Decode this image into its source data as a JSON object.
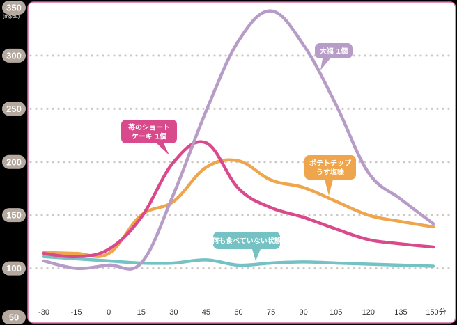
{
  "chart_data": {
    "type": "line",
    "title": "",
    "xlabel": "",
    "ylabel": "",
    "y_unit": "(mg/dL)",
    "x_unit_suffix": "分",
    "x": [
      -30,
      -15,
      0,
      15,
      30,
      45,
      60,
      75,
      90,
      105,
      120,
      135,
      150
    ],
    "x_tick_labels": [
      "-30",
      "-15",
      "0",
      "15",
      "30",
      "45",
      "60",
      "75",
      "90",
      "105",
      "120",
      "135",
      "150分"
    ],
    "y_ticks": [
      50,
      100,
      150,
      200,
      250,
      300,
      350
    ],
    "y_tick_labels": [
      "50",
      "100",
      "150",
      "200",
      "250",
      "300",
      "350"
    ],
    "ylim": [
      50,
      350
    ],
    "xlim": [
      -30,
      150
    ],
    "grid": "horizontal-dotted",
    "legend": "callouts-on-lines",
    "series": [
      {
        "name": "苺のショートケーキ 1個",
        "label_lines": [
          "苺のショートケーキ",
          "ケーキ 1個"
        ],
        "color": "#d94a8c",
        "values": [
          114,
          111,
          118,
          148,
          200,
          218,
          175,
          157,
          148,
          137,
          127,
          123,
          120
        ]
      },
      {
        "name": "ポテトチップ うす塩味",
        "label_lines": [
          "ポテトチップ",
          "うす塩味"
        ],
        "color": "#efa54c",
        "values": [
          115,
          114,
          114,
          150,
          163,
          195,
          201,
          183,
          176,
          163,
          150,
          144,
          139
        ]
      },
      {
        "name": "大福 1個",
        "label_lines": [
          "大福 1個"
        ],
        "color": "#b79cc8",
        "values": [
          107,
          100,
          103,
          105,
          170,
          248,
          314,
          342,
          310,
          254,
          190,
          165,
          142
        ]
      },
      {
        "name": "何も食べていない状態",
        "label_lines": [
          "何も食べていない状態"
        ],
        "color": "#74c2c3",
        "values": [
          111,
          109,
          107,
          105,
          105,
          108,
          103,
          105,
          106,
          105,
          104,
          103,
          102
        ]
      }
    ],
    "callouts": [
      {
        "series": 0,
        "lines": [
          "苺のショート",
          "ケーキ 1個"
        ],
        "color": "#d94a8c",
        "anchor_x": 22,
        "anchor_y": 262,
        "align": "left-of-tail"
      },
      {
        "series": 2,
        "lines": [
          "大福 1個"
        ],
        "color": "#b79cc8",
        "anchor_x": 84,
        "anchor_y": 305,
        "align": "left-of-tail"
      },
      {
        "series": 1,
        "lines": [
          "ポテトチップ",
          "うす塩味"
        ],
        "color": "#efa54c",
        "anchor_x": 100,
        "anchor_y": 176,
        "align": "center"
      },
      {
        "series": 3,
        "lines": [
          "何も食べていない状態"
        ],
        "color": "#74c2c3",
        "anchor_x": 68,
        "anchor_y": 106,
        "align": "center"
      }
    ],
    "colors": {
      "frame": "#d36aa6",
      "y_pill": "#b5a99f",
      "grid": "#cfc7c1",
      "background": "#000000"
    }
  }
}
